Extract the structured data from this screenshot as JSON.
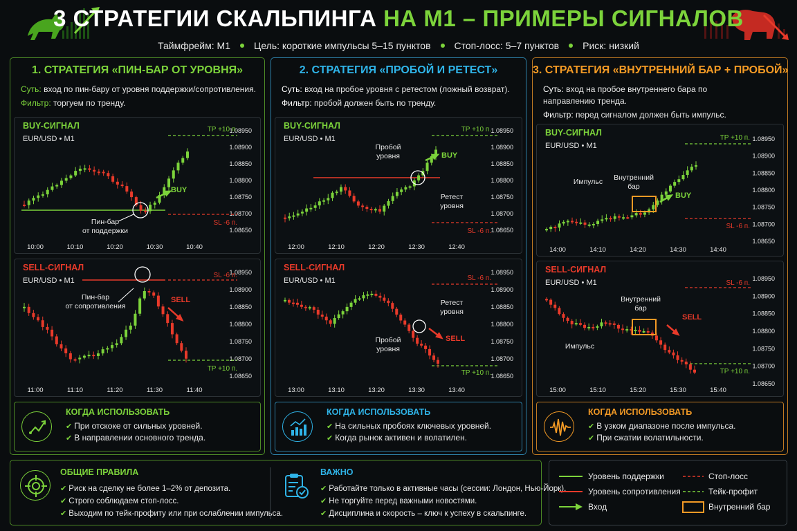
{
  "header": {
    "title_white": "3 СТРАТЕГИИ СКАЛЬПИНГА",
    "title_green": "НА M1 – ПРИМЕРЫ СИГНАЛОВ",
    "sub": [
      "Таймфрейм: M1",
      "Цель: короткие импульсы 5–15 пунктов",
      "Стоп-лосс: 5–7 пунктов",
      "Риск: низкий"
    ]
  },
  "colors": {
    "green": "#7cd33b",
    "red": "#e83a2a",
    "blue": "#2fb4e8",
    "orange": "#f39a25"
  },
  "strategies": [
    {
      "title": "1. СТРАТЕГИЯ «ПИН-БАР ОТ УРОВНЯ»",
      "essence_label": "Суть:",
      "essence": "вход по пин-бару от уровня поддержки/сопротивления.",
      "filter_label": "Фильтр:",
      "filter": "торгуем по тренду.",
      "buy": {
        "title": "BUY-СИГНАЛ",
        "pair": "EUR/USD • M1",
        "tp": "TP +10 п.",
        "sl": "SL -6 п.",
        "entry": "BUY",
        "note": [
          "Пин-бар",
          "от поддержки"
        ],
        "prices": [
          "1.08950",
          "1.08900",
          "1.08850",
          "1.08800",
          "1.08750",
          "1.08700",
          "1.08650"
        ],
        "times": [
          "10:00",
          "10:10",
          "10:20",
          "10:30",
          "10:40"
        ]
      },
      "sell": {
        "title": "SELL-СИГНАЛ",
        "pair": "EUR/USD • M1",
        "tp": "TP +10 п.",
        "sl": "SL -6 п.",
        "entry": "SELL",
        "note": [
          "Пин-бар",
          "от сопротивления"
        ],
        "prices": [
          "1.08950",
          "1.08900",
          "1.08850",
          "1.08800",
          "1.08750",
          "1.08700",
          "1.08650"
        ],
        "times": [
          "11:00",
          "11:10",
          "11:20",
          "11:30",
          "11:40"
        ]
      },
      "when_title": "КОГДА ИСПОЛЬЗОВАТЬ",
      "when": [
        "При отскоке от сильных уровней.",
        "В направлении основного тренда."
      ],
      "when_icon": "trend-zigzag-icon"
    },
    {
      "title": "2. СТРАТЕГИЯ «ПРОБОЙ И РЕТЕСТ»",
      "essence_label": "Суть:",
      "essence": "вход на пробое уровня с ретестом (ложный возврат).",
      "filter_label": "Фильтр:",
      "filter": "пробой должен быть по тренду.",
      "buy": {
        "title": "BUY-СИГНАЛ",
        "pair": "EUR/USD • M1",
        "tp": "TP +10 п.",
        "sl": "SL -6 п.",
        "entry": "BUY",
        "note1": [
          "Пробой",
          "уровня"
        ],
        "note2": [
          "Ретест",
          "уровня"
        ],
        "prices": [
          "1.08950",
          "1.08900",
          "1.08850",
          "1.08800",
          "1.08750",
          "1.08700",
          "1.08650"
        ],
        "times": [
          "12:00",
          "12:10",
          "12:20",
          "12:30",
          "12:40"
        ]
      },
      "sell": {
        "title": "SELL-СИГНАЛ",
        "pair": "EUR/USD • M1",
        "tp": "TP +10 п.",
        "sl": "SL -6 п.",
        "entry": "SELL",
        "note1": [
          "Ретест",
          "уровня"
        ],
        "note2": [
          "Пробой",
          "уровня"
        ],
        "prices": [
          "1.08950",
          "1.08900",
          "1.08850",
          "1.08800",
          "1.08750",
          "1.08700",
          "1.08650"
        ],
        "times": [
          "13:00",
          "13:10",
          "13:20",
          "13:30",
          "13:40"
        ]
      },
      "when_title": "КОГДА ИСПОЛЬЗОВАТЬ",
      "when": [
        "На сильных пробоях ключевых уровней.",
        "Когда рынок активен и волатилен."
      ],
      "when_icon": "chart-growth-icon"
    },
    {
      "title": "3. СТРАТЕГИЯ «ВНУТРЕННИЙ БАР + ПРОБОЙ»",
      "essence_label": "Суть:",
      "essence": "вход на пробое внутреннего бара по направлению тренда.",
      "filter_label": "Фильтр:",
      "filter": "перед сигналом должен быть импульс.",
      "buy": {
        "title": "BUY-СИГНАЛ",
        "pair": "EUR/USD • M1",
        "tp": "TP +10 п.",
        "sl": "SL -6 п.",
        "entry": "BUY",
        "note1": [
          "Импульс"
        ],
        "note2": [
          "Внутренний",
          "бар"
        ],
        "prices": [
          "1.08950",
          "1.08900",
          "1.08850",
          "1.08800",
          "1.08750",
          "1.08700",
          "1.08650"
        ],
        "times": [
          "14:00",
          "14:10",
          "14:20",
          "14:30",
          "14:40"
        ]
      },
      "sell": {
        "title": "SELL-СИГНАЛ",
        "pair": "EUR/USD • M1",
        "tp": "TP +10 п.",
        "sl": "SL -6 п.",
        "entry": "SELL",
        "note1": [
          "Импульс"
        ],
        "note2": [
          "Внутренний",
          "бар"
        ],
        "prices": [
          "1.08950",
          "1.08900",
          "1.08850",
          "1.08800",
          "1.08750",
          "1.08700",
          "1.08650"
        ],
        "times": [
          "15:00",
          "15:10",
          "15:20",
          "15:30",
          "15:40"
        ]
      },
      "when_title": "КОГДА ИСПОЛЬЗОВАТЬ",
      "when": [
        "В узком диапазоне после импульса.",
        "При сжатии волатильности."
      ],
      "when_icon": "waveform-icon"
    }
  ],
  "rules": {
    "title": "ОБЩИЕ ПРАВИЛА",
    "items": [
      "Риск на сделку не более 1–2% от депозита.",
      "Строго соблюдаем стоп-лосс.",
      "Выходим по тейк-профиту или при ослаблении импульса."
    ]
  },
  "important": {
    "title": "ВАЖНО",
    "items": [
      "Работайте только в активные часы (сессии: Лондон, Нью-Йорк).",
      "Не торгуйте перед важными новостями.",
      "Дисциплина и скорость – ключ к успеху в скальпинге."
    ]
  },
  "legend": {
    "support": "Уровень поддержки",
    "resistance": "Уровень сопротивления",
    "entry": "Вход",
    "sl": "Стоп-лосс",
    "tp": "Тейк-профит",
    "inside": "Внутренний бар"
  }
}
